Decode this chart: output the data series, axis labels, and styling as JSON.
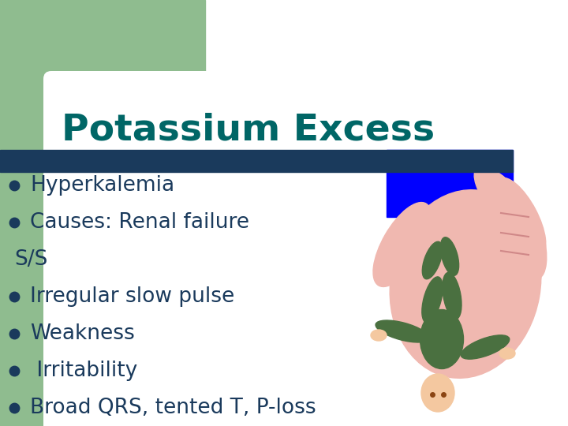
{
  "title": "Potassium Excess",
  "title_color": "#006666",
  "title_fontsize": 34,
  "bg_color": "#ffffff",
  "left_bar_color": "#8fbc8f",
  "divider_color": "#1a3a5c",
  "bullet_color": "#1a3a5c",
  "bullet_items": [
    {
      "text": "Hyperkalemia",
      "bullet": true
    },
    {
      "text": "Causes: Renal failure",
      "bullet": true
    },
    {
      "text": "S/S",
      "bullet": false
    },
    {
      "text": "Irregular slow pulse",
      "bullet": true
    },
    {
      "text": "Weakness",
      "bullet": true
    },
    {
      "text": " Irritability",
      "bullet": true
    },
    {
      "text": "Broad QRS, tented T, P-loss",
      "bullet": true
    }
  ],
  "text_color": "#1a3a5c",
  "text_fontsize": 19,
  "figsize": [
    7.2,
    5.4
  ],
  "dpi": 100
}
